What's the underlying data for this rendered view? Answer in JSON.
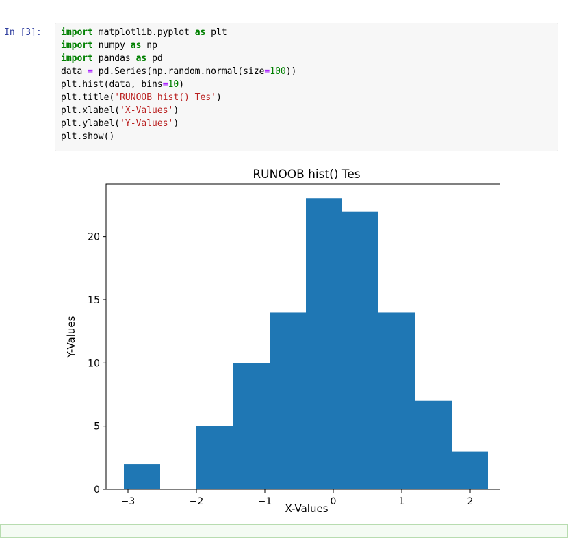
{
  "cell": {
    "prompt": "In  [3]:",
    "code_lines": [
      [
        {
          "t": "import",
          "c": "kw"
        },
        {
          "t": " matplotlib.pyplot ",
          "c": ""
        },
        {
          "t": "as",
          "c": "kw"
        },
        {
          "t": " plt",
          "c": ""
        }
      ],
      [
        {
          "t": "import",
          "c": "kw"
        },
        {
          "t": " numpy ",
          "c": ""
        },
        {
          "t": "as",
          "c": "kw"
        },
        {
          "t": " np",
          "c": ""
        }
      ],
      [
        {
          "t": "import",
          "c": "kw"
        },
        {
          "t": " pandas ",
          "c": ""
        },
        {
          "t": "as",
          "c": "kw"
        },
        {
          "t": " pd",
          "c": ""
        }
      ],
      [
        {
          "t": "data ",
          "c": ""
        },
        {
          "t": "=",
          "c": "op"
        },
        {
          "t": " pd.Series(np.random.normal(size",
          "c": ""
        },
        {
          "t": "=",
          "c": "op"
        },
        {
          "t": "100",
          "c": "num"
        },
        {
          "t": "))",
          "c": ""
        }
      ],
      [
        {
          "t": "plt.hist(data, bins",
          "c": ""
        },
        {
          "t": "=",
          "c": "op"
        },
        {
          "t": "10",
          "c": "num"
        },
        {
          "t": ")",
          "c": ""
        }
      ],
      [
        {
          "t": "plt.title(",
          "c": ""
        },
        {
          "t": "'RUNOOB hist() Tes'",
          "c": "str"
        },
        {
          "t": ")",
          "c": ""
        }
      ],
      [
        {
          "t": "plt.xlabel(",
          "c": ""
        },
        {
          "t": "'X-Values'",
          "c": "str"
        },
        {
          "t": ")",
          "c": ""
        }
      ],
      [
        {
          "t": "plt.ylabel(",
          "c": ""
        },
        {
          "t": "'Y-Values'",
          "c": "str"
        },
        {
          "t": ")",
          "c": ""
        }
      ],
      [
        {
          "t": "plt.show()",
          "c": ""
        }
      ]
    ]
  },
  "colors": {
    "bar": "#1f77b4",
    "prompt": "#303f9f",
    "keyword": "#008000",
    "string": "#ba2121"
  },
  "chart_data": {
    "type": "bar",
    "title": "RUNOOB hist() Tes",
    "xlabel": "X-Values",
    "ylabel": "Y-Values",
    "bins": [
      {
        "x0": -3.06,
        "x1": -2.53,
        "count": 2
      },
      {
        "x0": -2.53,
        "x1": -2.0,
        "count": 0
      },
      {
        "x0": -2.0,
        "x1": -1.47,
        "count": 5
      },
      {
        "x0": -1.47,
        "x1": -0.93,
        "count": 10
      },
      {
        "x0": -0.93,
        "x1": -0.4,
        "count": 14
      },
      {
        "x0": -0.4,
        "x1": 0.13,
        "count": 23
      },
      {
        "x0": 0.13,
        "x1": 0.66,
        "count": 22
      },
      {
        "x0": 0.66,
        "x1": 1.2,
        "count": 14
      },
      {
        "x0": 1.2,
        "x1": 1.73,
        "count": 7
      },
      {
        "x0": 1.73,
        "x1": 2.26,
        "count": 3
      }
    ],
    "xlim": [
      -3.32,
      2.53
    ],
    "ylim": [
      0,
      24.15
    ],
    "xticks": [
      -3,
      -2,
      -1,
      0,
      1,
      2
    ],
    "xtick_labels": [
      "−3",
      "−2",
      "−1",
      "0",
      "1",
      "2"
    ],
    "yticks": [
      0,
      5,
      10,
      15,
      20
    ],
    "ytick_labels": [
      "0",
      "5",
      "10",
      "15",
      "20"
    ],
    "grid": false,
    "legend": "none"
  }
}
